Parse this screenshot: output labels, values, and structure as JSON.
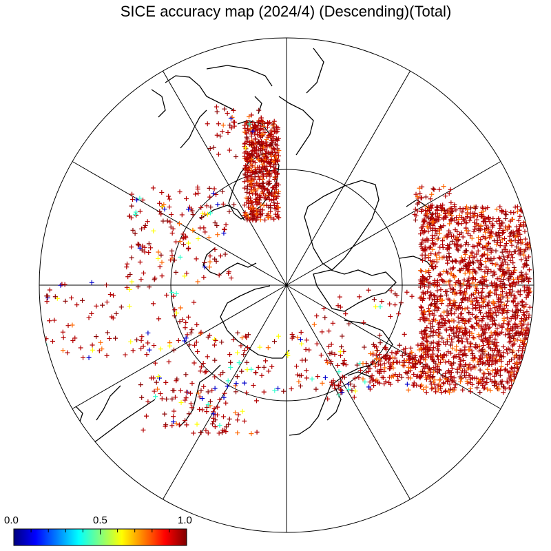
{
  "title": "SICE accuracy map (2024/4) (Descending)(Total)",
  "colorbar": {
    "ticks": [
      "0.0",
      "0.5",
      "1.0"
    ],
    "range": [
      0.0,
      1.0
    ],
    "colormap": "jet",
    "colors": [
      "#00007f",
      "#0000ff",
      "#00ffff",
      "#ffff00",
      "#ff0000",
      "#7f0000"
    ]
  },
  "map": {
    "projection": "north polar stereographic",
    "meridian_count": 12,
    "inner_circle": true,
    "marker_symbol": "+",
    "marker_colors": {
      "high": "#b30000",
      "very_high": "#8b0000",
      "mid_high": "#ff6600",
      "mid": "#ffff00",
      "low_mid": "#33ffcc",
      "low": "#0000cc"
    }
  }
}
